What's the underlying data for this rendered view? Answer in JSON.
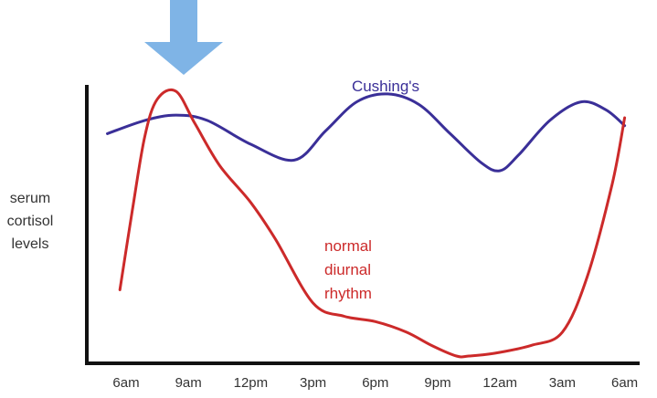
{
  "chart_data": {
    "type": "line",
    "categories": [
      "6am",
      "9am",
      "12pm",
      "3pm",
      "6pm",
      "9pm",
      "12am",
      "3am",
      "6am"
    ],
    "ylabel": [
      "serum",
      "cortisol",
      "levels"
    ],
    "yrange": [
      0,
      100
    ],
    "grid": false,
    "legend": "none",
    "marker": "arrow-down-at-peak",
    "series": [
      {
        "name": "Cushing's",
        "label_lines": [
          "Cushing's"
        ],
        "color": "#3a2f98",
        "x": [
          -0.3,
          0.3,
          0.8,
          1.3,
          2.0,
          2.7,
          3.2,
          3.7,
          4.2,
          4.7,
          5.2,
          5.7,
          6.0,
          6.3,
          6.8,
          7.3,
          7.7,
          8.0
        ],
        "values": [
          84,
          89,
          91,
          89,
          80,
          74,
          85,
          96,
          99,
          95,
          84,
          73,
          70,
          76,
          89,
          96,
          93,
          87
        ]
      },
      {
        "name": "normal diurnal rhythm",
        "label_lines": [
          "normal",
          "diurnal",
          "rhythm"
        ],
        "color": "#cc2a2a",
        "x": [
          -0.1,
          0.1,
          0.3,
          0.5,
          0.8,
          1.1,
          1.5,
          2.0,
          2.4,
          3.0,
          3.5,
          4.0,
          4.5,
          4.9,
          5.3,
          5.5,
          5.9,
          6.5,
          7.0,
          7.4,
          7.8,
          8.0
        ],
        "values": [
          25,
          55,
          83,
          97,
          100,
          88,
          72,
          58,
          44,
          20,
          15,
          13,
          9,
          4,
          0,
          0,
          1,
          4,
          9,
          30,
          65,
          90
        ]
      }
    ]
  }
}
